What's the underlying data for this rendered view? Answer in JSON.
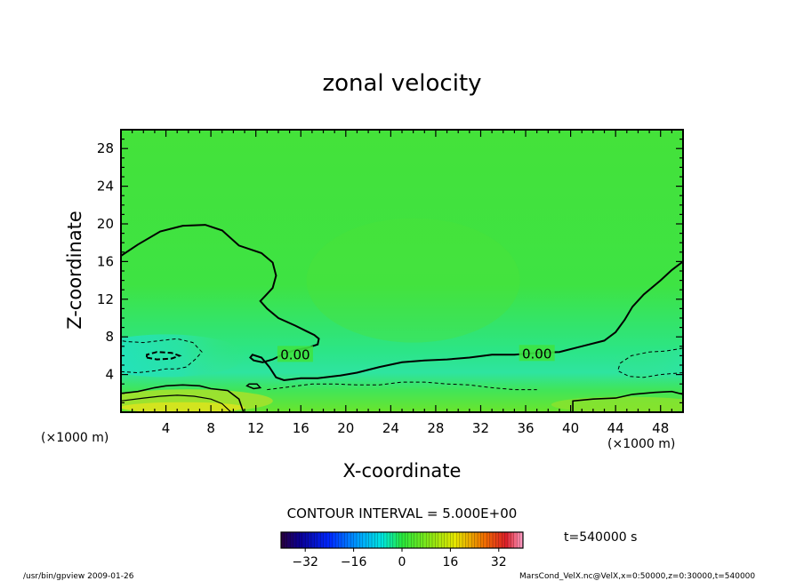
{
  "chart_data": {
    "type": "heatmap",
    "title": "zonal velocity",
    "xlabel": "X-coordinate",
    "ylabel": "Z-coordinate",
    "x_unit": "(×1000 m)",
    "y_unit": "(×1000 m)",
    "x_ticks": [
      4,
      8,
      12,
      16,
      20,
      24,
      28,
      32,
      36,
      40,
      44,
      48
    ],
    "y_ticks": [
      4,
      8,
      12,
      16,
      20,
      24,
      28
    ],
    "xlim": [
      0,
      50
    ],
    "ylim": [
      0,
      30
    ],
    "contour_interval_text": "CONTOUR INTERVAL = 5.000E+00",
    "contour_label": "0.00",
    "zero_contour_label_positions": [
      [
        15.5,
        6.1
      ],
      [
        37,
        6.2
      ]
    ],
    "time_text": "t=540000 s",
    "colorbar": {
      "range": [
        -40,
        40
      ],
      "ticks": [
        -32,
        -16,
        0,
        16,
        32
      ],
      "tick_labels": [
        "−32",
        "−16",
        "0",
        "16",
        "32"
      ]
    },
    "zero_contour_main": [
      [
        0,
        16.6
      ],
      [
        1.5,
        17.8
      ],
      [
        3.5,
        19.2
      ],
      [
        5.5,
        19.8
      ],
      [
        7.5,
        19.9
      ],
      [
        9,
        19.3
      ],
      [
        10.5,
        17.7
      ],
      [
        12.5,
        16.9
      ],
      [
        13.5,
        15.9
      ],
      [
        13.8,
        14.5
      ],
      [
        13.5,
        13.2
      ],
      [
        12.8,
        12.3
      ],
      [
        12.4,
        11.8
      ],
      [
        13,
        11
      ],
      [
        14,
        10
      ],
      [
        15.5,
        9.2
      ],
      [
        16.5,
        8.6
      ],
      [
        17.2,
        8.2
      ],
      [
        17.6,
        7.8
      ],
      [
        17.5,
        7.2
      ],
      [
        16.5,
        6.8
      ],
      [
        15.5,
        6.6
      ],
      [
        14.5,
        6.2
      ],
      [
        13.5,
        5.6
      ],
      [
        12.6,
        5.3
      ],
      [
        11.8,
        5.5
      ],
      [
        11.5,
        5.8
      ],
      [
        11.7,
        6.1
      ],
      [
        12.5,
        5.8
      ],
      [
        13.2,
        4.8
      ],
      [
        13.8,
        3.7
      ],
      [
        14.5,
        3.4
      ],
      [
        16,
        3.6
      ],
      [
        17.5,
        3.6
      ],
      [
        19.5,
        3.9
      ],
      [
        21,
        4.2
      ],
      [
        23,
        4.8
      ],
      [
        25,
        5.3
      ],
      [
        27,
        5.5
      ],
      [
        29,
        5.6
      ],
      [
        31,
        5.8
      ],
      [
        33,
        6.1
      ],
      [
        35,
        6.1
      ],
      [
        37,
        6.3
      ],
      [
        39,
        6.4
      ],
      [
        41,
        7.0
      ],
      [
        43,
        7.6
      ],
      [
        44,
        8.5
      ],
      [
        44.8,
        9.8
      ],
      [
        45.5,
        11.2
      ],
      [
        46.5,
        12.5
      ],
      [
        48,
        14
      ],
      [
        49,
        15.1
      ],
      [
        50,
        16
      ]
    ],
    "zero_contour_small": [
      [
        11.2,
        2.8
      ],
      [
        11.8,
        2.5
      ],
      [
        12.4,
        2.6
      ],
      [
        12.1,
        3.0
      ],
      [
        11.4,
        3.0
      ],
      [
        11.2,
        2.8
      ]
    ],
    "dashed_contour_left": [
      [
        0,
        4.3
      ],
      [
        1.5,
        4.2
      ],
      [
        3,
        4.4
      ],
      [
        4,
        4.6
      ],
      [
        5,
        4.6
      ],
      [
        5.8,
        4.8
      ],
      [
        6.6,
        5.6
      ],
      [
        7.2,
        6.4
      ],
      [
        6.4,
        7.4
      ],
      [
        5,
        7.8
      ],
      [
        3.5,
        7.6
      ],
      [
        2,
        7.4
      ],
      [
        0.5,
        7.5
      ],
      [
        0,
        7.6
      ]
    ],
    "dashed_contour_right": [
      [
        50,
        4.2
      ],
      [
        48,
        4.0
      ],
      [
        46.5,
        3.7
      ],
      [
        45.2,
        3.8
      ],
      [
        44.2,
        4.4
      ],
      [
        44.4,
        5.2
      ],
      [
        45.4,
        6.0
      ],
      [
        47,
        6.4
      ],
      [
        48.5,
        6.5
      ],
      [
        50,
        6.8
      ]
    ],
    "dashed_contour_mid": [
      [
        13,
        2.4
      ],
      [
        15,
        2.7
      ],
      [
        17,
        3.0
      ],
      [
        19,
        3.0
      ],
      [
        21,
        2.9
      ],
      [
        23,
        2.9
      ],
      [
        25,
        3.2
      ],
      [
        27,
        3.2
      ],
      [
        29,
        3.0
      ],
      [
        31,
        2.9
      ],
      [
        33,
        2.6
      ],
      [
        35,
        2.4
      ],
      [
        37,
        2.4
      ]
    ],
    "dashed_inner_left": [
      [
        2.3,
        5.8
      ],
      [
        3.2,
        5.6
      ],
      [
        4.5,
        5.7
      ],
      [
        5.2,
        6.0
      ],
      [
        4.5,
        6.3
      ],
      [
        3.2,
        6.4
      ],
      [
        2.3,
        6.1
      ],
      [
        2.3,
        5.8
      ]
    ],
    "solid_bottom_left": [
      [
        0,
        2.0
      ],
      [
        1.5,
        2.2
      ],
      [
        3,
        2.6
      ],
      [
        4,
        2.8
      ],
      [
        5.5,
        2.9
      ],
      [
        7,
        2.8
      ],
      [
        8,
        2.5
      ],
      [
        9.5,
        2.3
      ],
      [
        10.5,
        1.4
      ],
      [
        10.9,
        0
      ]
    ],
    "solid_bottom_left_2": [
      [
        0,
        1.2
      ],
      [
        2,
        1.5
      ],
      [
        3.5,
        1.7
      ],
      [
        5,
        1.8
      ],
      [
        6.5,
        1.7
      ],
      [
        8,
        1.4
      ],
      [
        9,
        0.9
      ],
      [
        9.8,
        0
      ]
    ],
    "solid_bottom_right": [
      [
        40.2,
        0
      ],
      [
        40.2,
        1.2
      ],
      [
        42,
        1.4
      ],
      [
        44,
        1.5
      ],
      [
        45.5,
        1.9
      ],
      [
        47.5,
        2.1
      ],
      [
        49,
        2.2
      ],
      [
        50,
        1.9
      ]
    ],
    "footer_left": "/usr/bin/gpview   2009-01-26",
    "footer_right": "MarsCond_VelX.nc@VelX,x=0:50000,z=0:30000,t=540000"
  }
}
